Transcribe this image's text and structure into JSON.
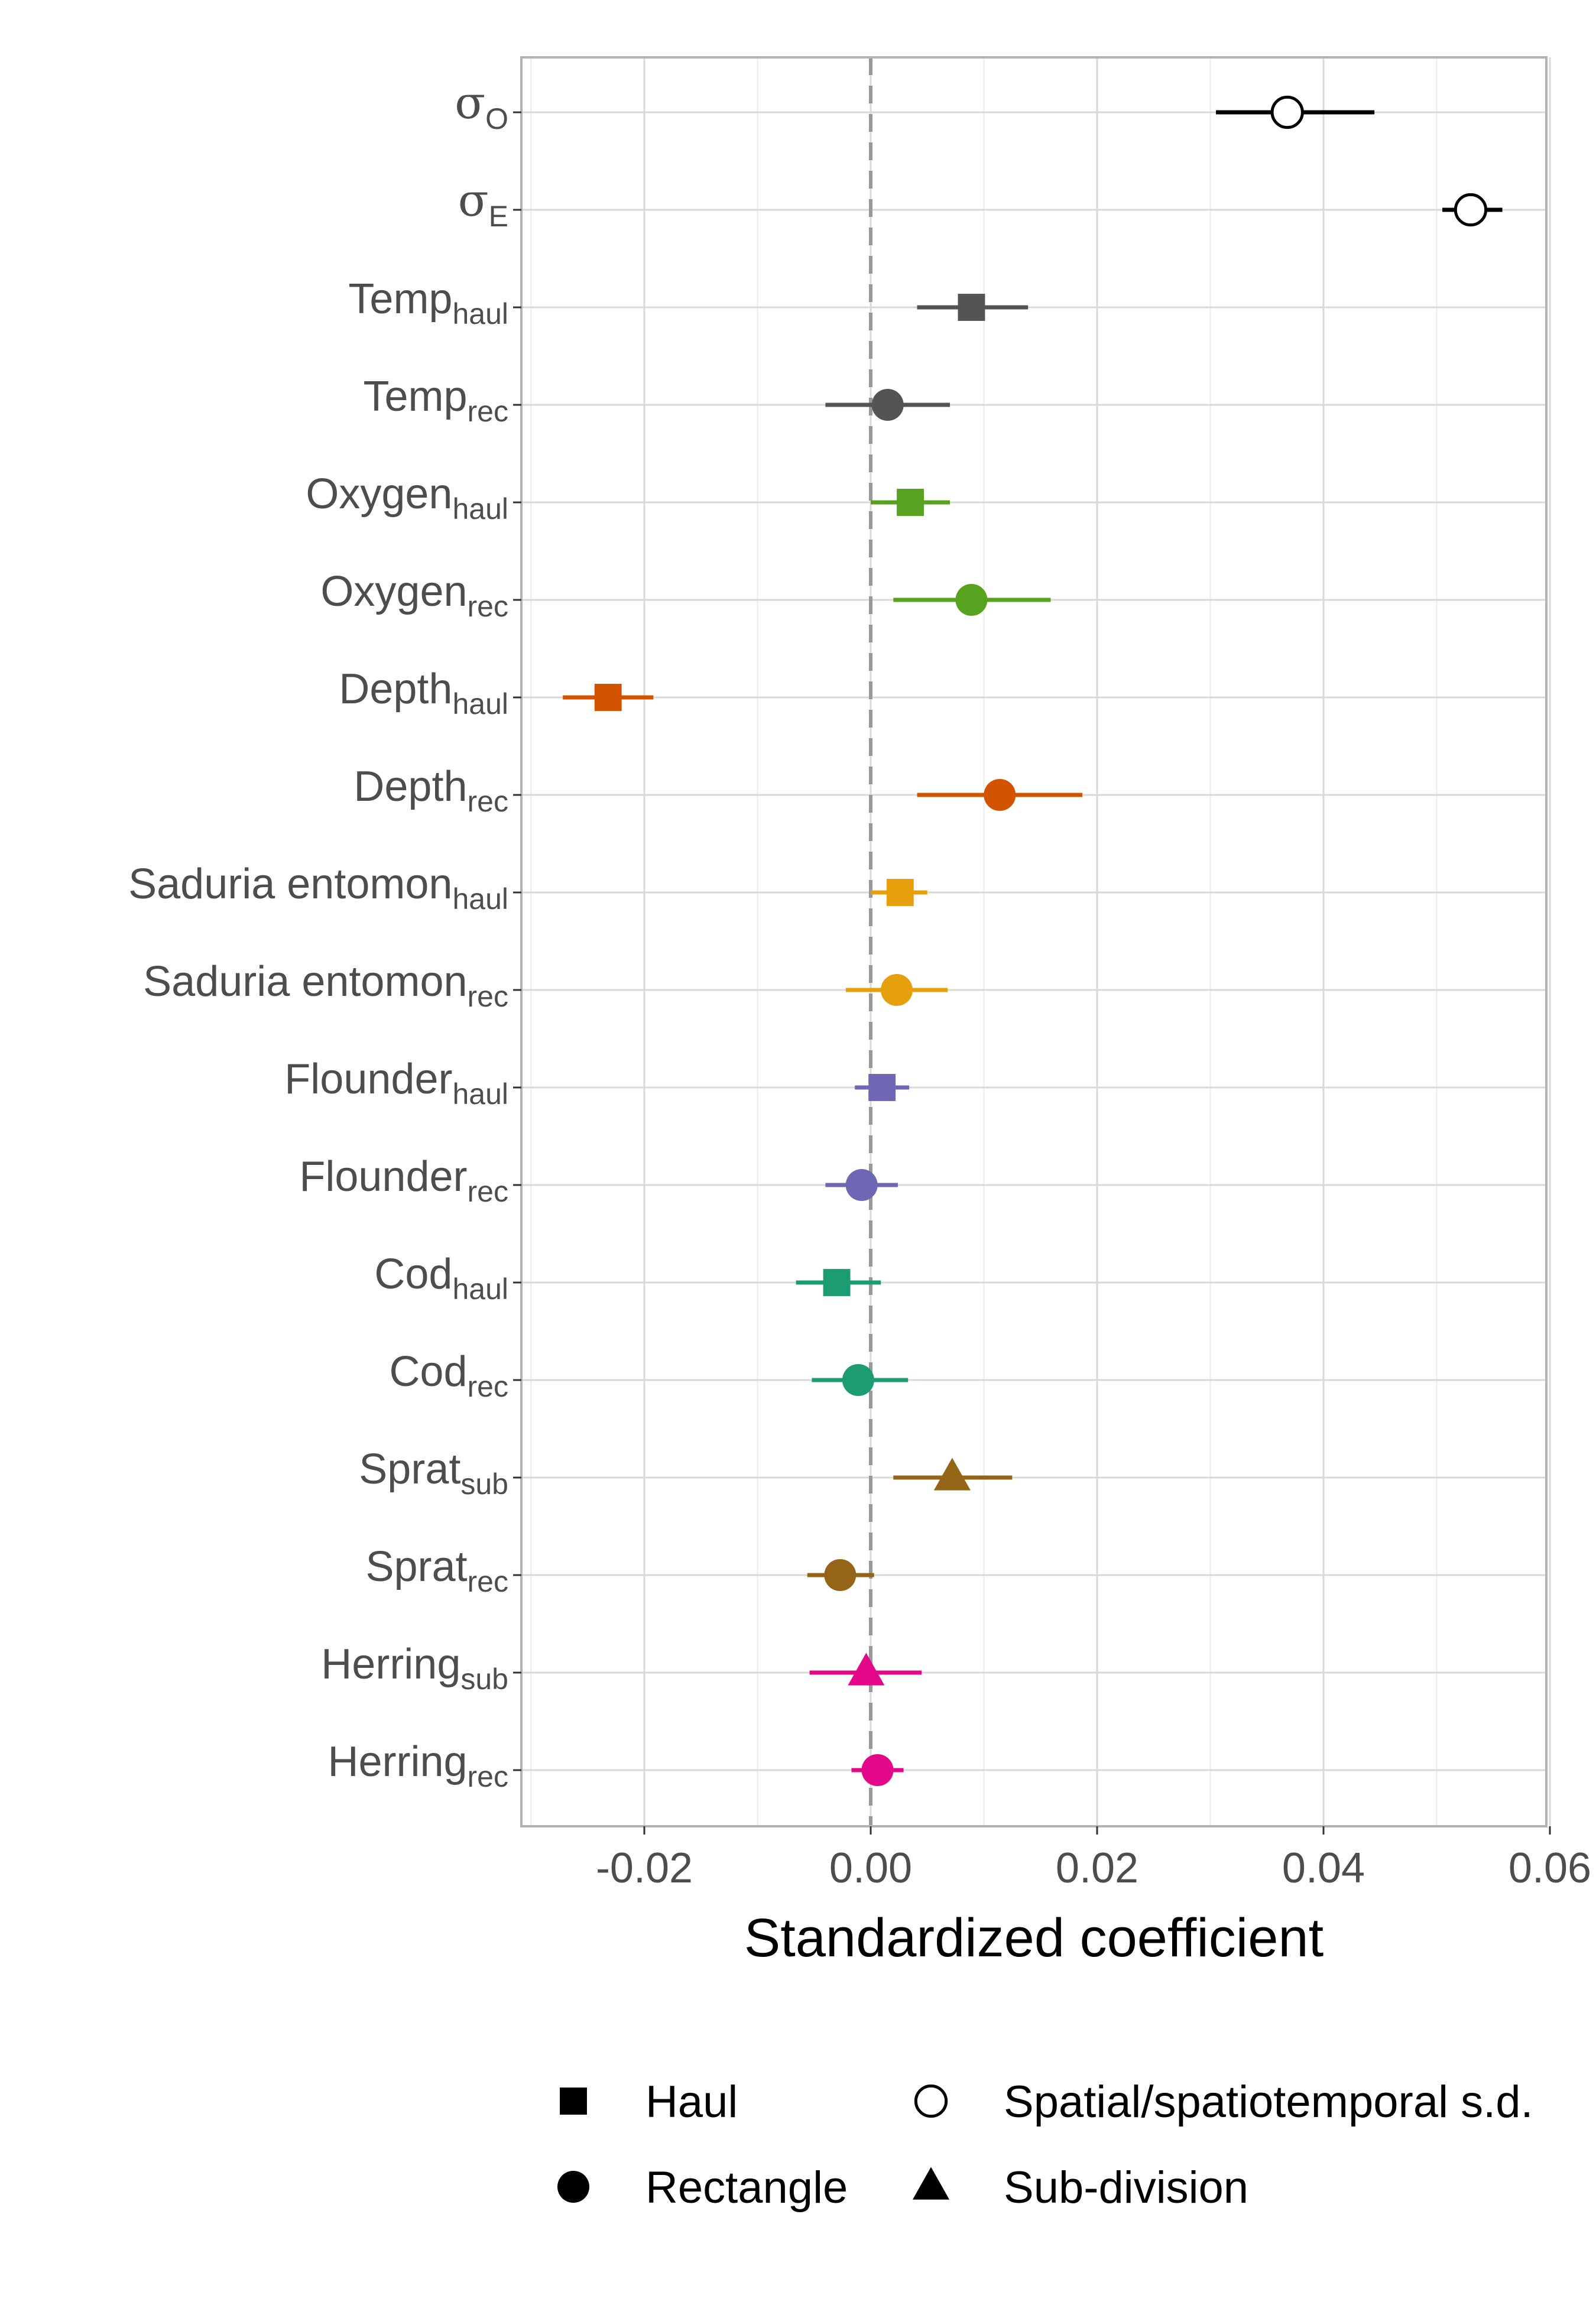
{
  "chart_data": {
    "type": "scatter",
    "title": "",
    "xlabel": "Standardized coefficient",
    "ylabel": "",
    "xlim": [
      -0.031,
      0.06
    ],
    "x_ticks": [
      "-0.02",
      "0.00",
      "0.02",
      "0.04",
      "0.06"
    ],
    "x_tick_values": [
      -0.02,
      0.0,
      0.02,
      0.04,
      0.06
    ],
    "reference_line": 0,
    "grid": true,
    "legend_position": "bottom",
    "legend": [
      {
        "label": "Haul",
        "shape": "square"
      },
      {
        "label": "Spatial/spatiotemporal s.d.",
        "shape": "open-circle"
      },
      {
        "label": "Rectangle",
        "shape": "circle"
      },
      {
        "label": "Sub-division",
        "shape": "triangle"
      }
    ],
    "points": [
      {
        "label": "σ",
        "sub": "O",
        "estimate": 0.0368,
        "lower": 0.0305,
        "upper": 0.0445,
        "shape": "open-circle",
        "color": "#000000"
      },
      {
        "label": "σ",
        "sub": "E",
        "estimate": 0.053,
        "lower": 0.0505,
        "upper": 0.0558,
        "shape": "open-circle",
        "color": "#000000"
      },
      {
        "label": "Temp",
        "sub": "haul",
        "estimate": 0.0089,
        "lower": 0.0041,
        "upper": 0.0139,
        "shape": "square",
        "color": "#545454"
      },
      {
        "label": "Temp",
        "sub": "rec",
        "estimate": 0.0015,
        "lower": -0.004,
        "upper": 0.007,
        "shape": "circle",
        "color": "#545454"
      },
      {
        "label": "Oxygen",
        "sub": "haul",
        "estimate": 0.0035,
        "lower": 0.0,
        "upper": 0.007,
        "shape": "square",
        "color": "#57a21f"
      },
      {
        "label": "Oxygen",
        "sub": "rec",
        "estimate": 0.0089,
        "lower": 0.002,
        "upper": 0.0159,
        "shape": "circle",
        "color": "#57a21f"
      },
      {
        "label": "Depth",
        "sub": "haul",
        "estimate": -0.0232,
        "lower": -0.0272,
        "upper": -0.0192,
        "shape": "square",
        "color": "#d35400"
      },
      {
        "label": "Depth",
        "sub": "rec",
        "estimate": 0.0114,
        "lower": 0.0041,
        "upper": 0.0187,
        "shape": "circle",
        "color": "#d35400"
      },
      {
        "label": "Saduria entomon",
        "sub": "haul",
        "estimate": 0.0026,
        "lower": 0.0,
        "upper": 0.005,
        "shape": "square",
        "color": "#e6a00e"
      },
      {
        "label": "Saduria entomon",
        "sub": "rec",
        "estimate": 0.0023,
        "lower": -0.0022,
        "upper": 0.0068,
        "shape": "circle",
        "color": "#e6a00e"
      },
      {
        "label": "Flounder",
        "sub": "haul",
        "estimate": 0.001,
        "lower": -0.0014,
        "upper": 0.0034,
        "shape": "square",
        "color": "#6e67b4"
      },
      {
        "label": "Flounder",
        "sub": "rec",
        "estimate": -0.0008,
        "lower": -0.004,
        "upper": 0.0024,
        "shape": "circle",
        "color": "#6e67b4"
      },
      {
        "label": "Cod",
        "sub": "haul",
        "estimate": -0.003,
        "lower": -0.0066,
        "upper": 0.0009,
        "shape": "square",
        "color": "#1b9c72"
      },
      {
        "label": "Cod",
        "sub": "rec",
        "estimate": -0.0011,
        "lower": -0.0052,
        "upper": 0.0033,
        "shape": "circle",
        "color": "#1b9c72"
      },
      {
        "label": "Sprat",
        "sub": "sub",
        "estimate": 0.0072,
        "lower": 0.002,
        "upper": 0.0125,
        "shape": "triangle",
        "color": "#946417"
      },
      {
        "label": "Sprat",
        "sub": "rec",
        "estimate": -0.0027,
        "lower": -0.0056,
        "upper": 0.0003,
        "shape": "circle",
        "color": "#946417"
      },
      {
        "label": "Herring",
        "sub": "sub",
        "estimate": -0.0004,
        "lower": -0.0054,
        "upper": 0.0045,
        "shape": "triangle",
        "color": "#e3088a"
      },
      {
        "label": "Herring",
        "sub": "rec",
        "estimate": 0.0006,
        "lower": -0.0017,
        "upper": 0.0029,
        "shape": "circle",
        "color": "#e3088a"
      }
    ]
  }
}
